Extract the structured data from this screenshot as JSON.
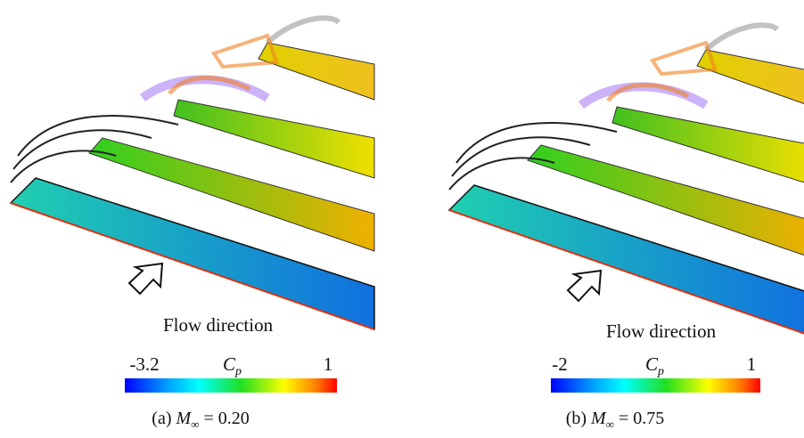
{
  "panels": [
    {
      "flow_label": "Flow direction",
      "colorbar": {
        "min": -3.2,
        "max": 1,
        "symbol": "C",
        "subscript": "p"
      },
      "caption": {
        "label": "(a)",
        "symbol": "M",
        "subscript": "∞",
        "value": "= 0.20"
      }
    },
    {
      "flow_label": "Flow direction",
      "colorbar": {
        "min": -2,
        "max": 1,
        "symbol": "C",
        "subscript": "p"
      },
      "caption": {
        "label": "(b)",
        "symbol": "M",
        "subscript": "∞",
        "value": "= 0.75"
      }
    }
  ]
}
